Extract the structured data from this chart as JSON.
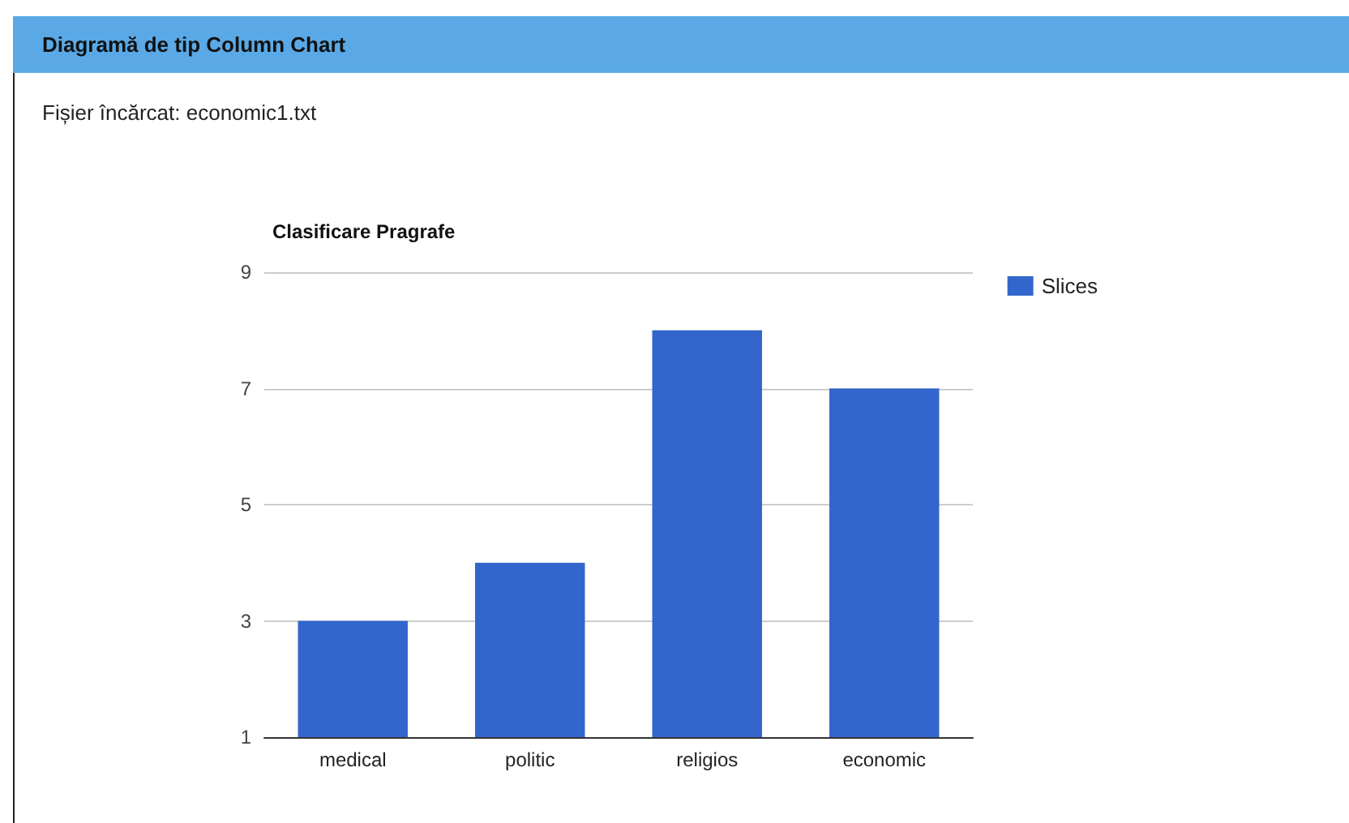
{
  "chart_data": {
    "type": "bar",
    "title": "Clasificare Pragrafe",
    "annotations": [
      "Diagramă de tip Column Chart",
      "Fișier încărcat: economic1.txt"
    ],
    "categories": [
      "medical",
      "politic",
      "religios",
      "economic"
    ],
    "series": [
      {
        "name": "Slices",
        "color": "#3366cc",
        "values": [
          3,
          4,
          8,
          7
        ]
      }
    ],
    "ylim": [
      1,
      9
    ],
    "yticks": [
      1,
      3,
      5,
      7,
      9
    ],
    "grid": "y",
    "legend": "top right"
  }
}
